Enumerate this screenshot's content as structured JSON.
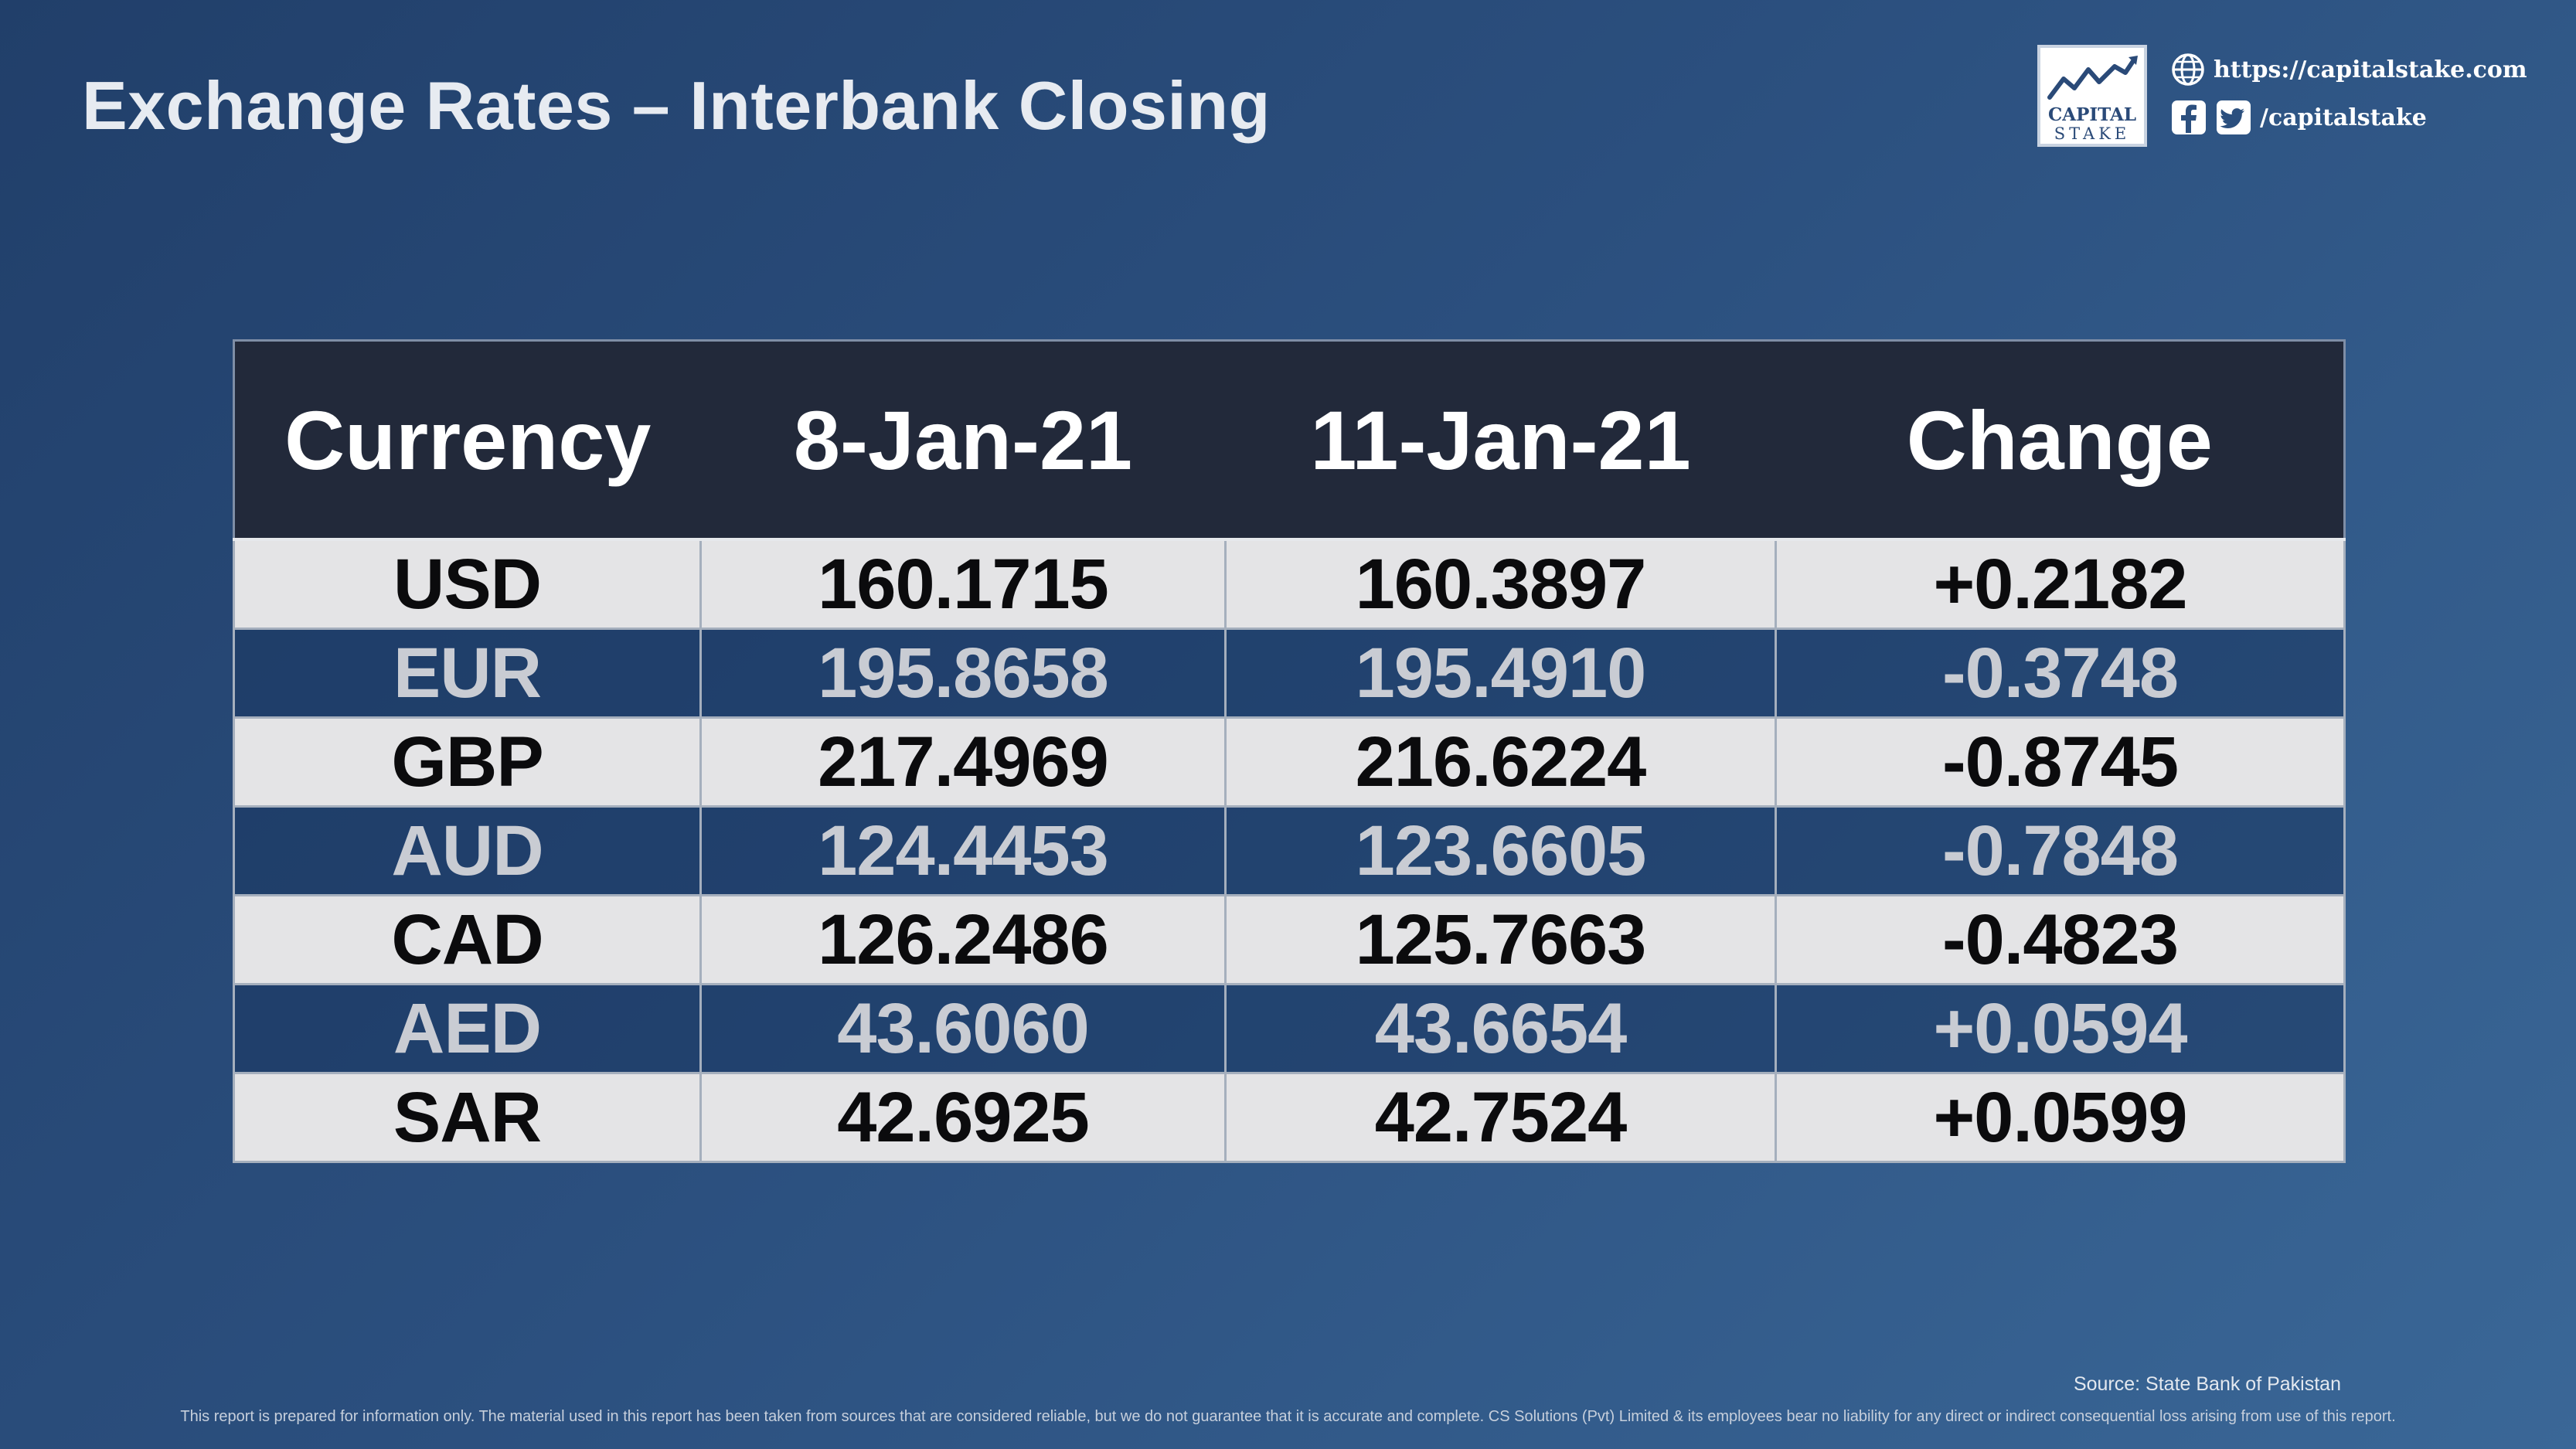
{
  "title": "Exchange Rates – Interbank Closing",
  "branding": {
    "logo_line1": "CAPITAL",
    "logo_line2": "STAKE",
    "website": "https://capitalstake.com",
    "social_handle": "/capitalstake",
    "icons": [
      "globe-icon",
      "facebook-icon",
      "twitter-icon"
    ]
  },
  "table": {
    "headers": [
      "Currency",
      "8-Jan-21",
      "11-Jan-21",
      "Change"
    ],
    "rows": [
      {
        "currency": "USD",
        "d1": "160.1715",
        "d2": "160.3897",
        "change": "+0.2182"
      },
      {
        "currency": "EUR",
        "d1": "195.8658",
        "d2": "195.4910",
        "change": "-0.3748"
      },
      {
        "currency": "GBP",
        "d1": "217.4969",
        "d2": "216.6224",
        "change": "-0.8745"
      },
      {
        "currency": "AUD",
        "d1": "124.4453",
        "d2": "123.6605",
        "change": "-0.7848"
      },
      {
        "currency": "CAD",
        "d1": "126.2486",
        "d2": "125.7663",
        "change": "-0.4823"
      },
      {
        "currency": "AED",
        "d1": "43.6060",
        "d2": "43.6654",
        "change": "+0.0594"
      },
      {
        "currency": "SAR",
        "d1": "42.6925",
        "d2": "42.7524",
        "change": "+0.0599"
      }
    ]
  },
  "source": "Source: State Bank of Pakistan",
  "disclaimer": "This report is prepared for information only. The material used in this report has been taken from sources that are considered reliable, but we do not guarantee that it is accurate and complete. CS Solutions (Pvt) Limited & its employees bear no liability for any direct or indirect consequential loss arising from use of this report.",
  "colors": {
    "background": "#2b4f7e",
    "header_bg": "#22293a",
    "row_light": "#e4e4e6",
    "row_dark": "#2a4b77"
  }
}
